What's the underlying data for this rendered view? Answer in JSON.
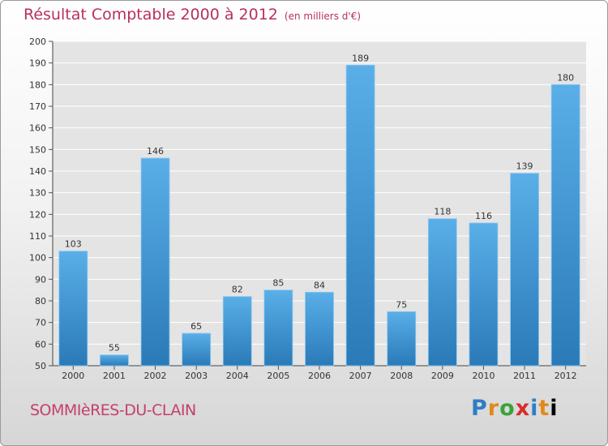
{
  "header": {
    "title": "Résultat Comptable 2000 à 2012",
    "subtitle": "(en milliers d'€)"
  },
  "footer": {
    "commune": "SOMMIèRES-DU-CLAIN",
    "logo_letters": [
      "P",
      "r",
      "o",
      "x",
      "i",
      "t",
      "i"
    ]
  },
  "colors": {
    "bar_light": "#5aafe8",
    "bar_dark": "#2a7ab8",
    "title": "#b8305c",
    "grid": "#ffffff"
  },
  "chart_data": {
    "type": "bar",
    "title": "Résultat Comptable 2000 à 2012",
    "subtitle": "(en milliers d'€)",
    "categories": [
      "2000",
      "2001",
      "2002",
      "2003",
      "2004",
      "2005",
      "2006",
      "2007",
      "2008",
      "2009",
      "2010",
      "2011",
      "2012"
    ],
    "values": [
      103,
      55,
      146,
      65,
      82,
      85,
      84,
      189,
      75,
      118,
      116,
      139,
      180
    ],
    "ylim": [
      50,
      200
    ],
    "ytick_step": 10,
    "grid": true,
    "data_labels": true
  }
}
